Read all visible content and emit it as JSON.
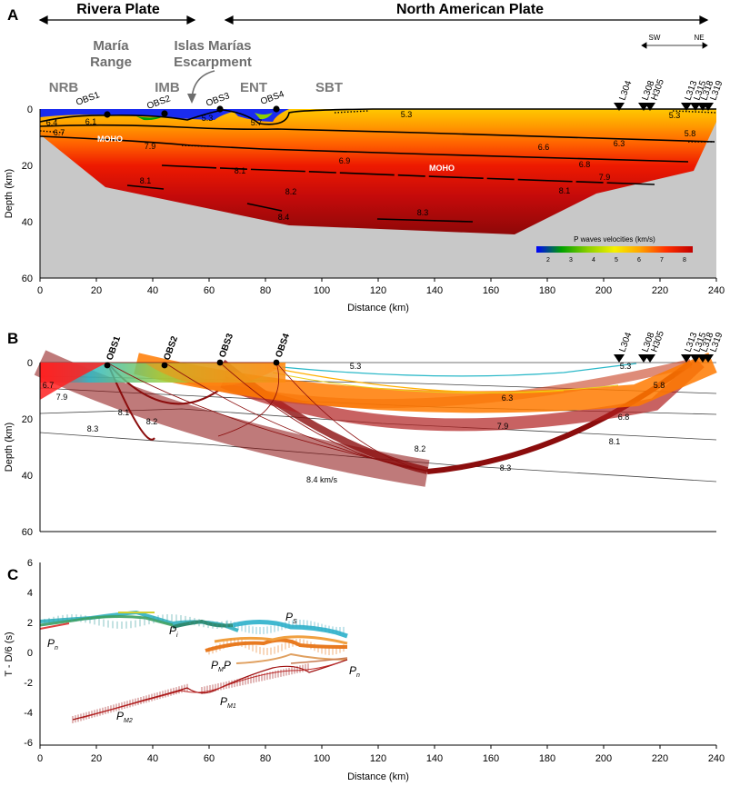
{
  "panelA": {
    "letter": "A",
    "plates": {
      "left": "Rivera Plate",
      "right": "North American Plate"
    },
    "features": {
      "maria": [
        "María",
        "Range"
      ],
      "islas": [
        "Islas Marías",
        "Escarpment"
      ]
    },
    "orientation": {
      "sw": "SW",
      "ne": "NE"
    },
    "regions": [
      "NRB",
      "IMB",
      "ENT",
      "SBT"
    ],
    "obs": [
      "OBS1",
      "OBS2",
      "OBS3",
      "OBS4"
    ],
    "stations": [
      "L304",
      "L308",
      "H305",
      "L313",
      "L315",
      "L318",
      "L319"
    ],
    "moho": "MOHO",
    "velocities": [
      "6.4",
      "6.1",
      "6.7",
      "5.3",
      "5.7",
      "5.3",
      "5.3",
      "5.8",
      "6.3",
      "6.6",
      "7.9",
      "6.9",
      "6.8",
      "7.9",
      "8.1",
      "8.1",
      "8.2",
      "8.1",
      "8.4",
      "8.3"
    ],
    "colorbar": {
      "title": "P waves velocities (km/s)",
      "ticks": [
        "2",
        "3",
        "4",
        "5",
        "6",
        "7",
        "8"
      ],
      "stops": [
        "#0000ff",
        "#00a000",
        "#7fd000",
        "#f0f000",
        "#ffa500",
        "#ff4000",
        "#cc0000"
      ]
    },
    "yaxis": {
      "label": "Depth (km)",
      "ticks": [
        "0",
        "20",
        "40",
        "60"
      ]
    },
    "xaxis": {
      "label": "Distance (km)",
      "ticks": [
        "0",
        "20",
        "40",
        "60",
        "80",
        "100",
        "120",
        "140",
        "160",
        "180",
        "200",
        "220",
        "240"
      ]
    }
  },
  "panelB": {
    "letter": "B",
    "obs": [
      "OBS1",
      "OBS2",
      "OBS3",
      "OBS4"
    ],
    "stations": [
      "L304",
      "L308",
      "H305",
      "L313",
      "L315",
      "L318",
      "L319"
    ],
    "velocities": [
      "5.3",
      "5.3",
      "6.7",
      "7.9",
      "6.3",
      "5.8",
      "8.1",
      "8.2",
      "6.8",
      "7.9",
      "8.3",
      "8.2",
      "8.1",
      "8.3",
      "8.4 km/s"
    ],
    "yaxis": {
      "label": "Depth (km)",
      "ticks": [
        "0",
        "20",
        "40",
        "60"
      ]
    }
  },
  "panelC": {
    "letter": "C",
    "phases": [
      "Pn",
      "Pi",
      "Ps",
      "PMP",
      "Pn",
      "PM1",
      "PM2"
    ],
    "phaseSubs": [
      "n",
      "i",
      "S",
      "M",
      "n",
      "M1",
      "M2"
    ],
    "phaseBase": [
      "P",
      "P",
      "P",
      "P",
      "P",
      "P",
      "P"
    ],
    "pmpTail": "P",
    "yaxis": {
      "label": "T - D/6 (s)",
      "ticks": [
        "6",
        "4",
        "2",
        "0",
        "-2",
        "-4",
        "-6"
      ]
    },
    "xaxis": {
      "label": "Distance (km)",
      "ticks": [
        "0",
        "20",
        "40",
        "60",
        "80",
        "100",
        "120",
        "140",
        "160",
        "180",
        "200",
        "220",
        "240"
      ]
    }
  },
  "colors": {
    "terrain": "#c8c8c8",
    "water": "#1a2cf0",
    "orange": "#ffb000",
    "red": "#e01010",
    "darkred": "#8a0a0a",
    "ray": "#8b0d0d"
  }
}
